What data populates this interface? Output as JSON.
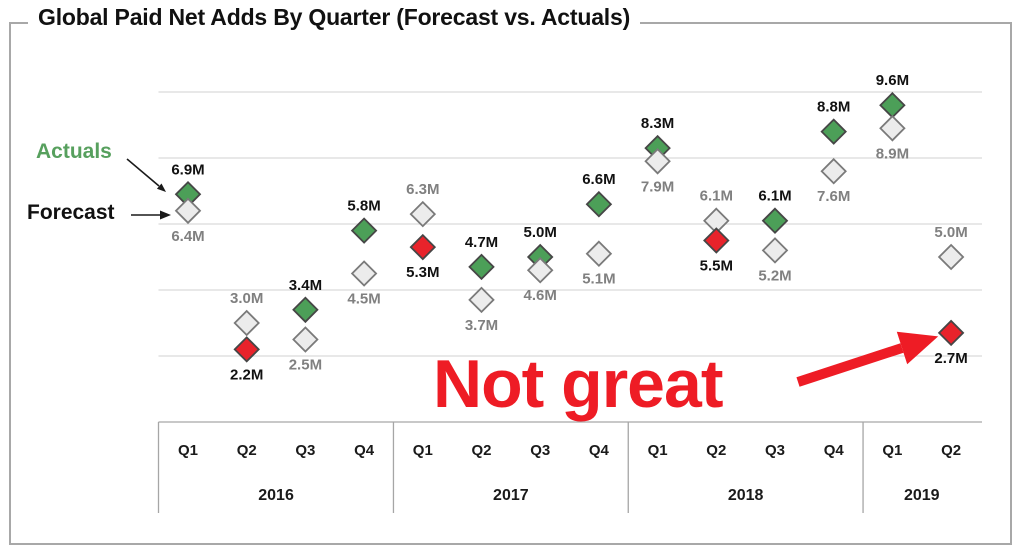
{
  "title": "Global Paid Net Adds By Quarter (Forecast vs. Actuals)",
  "legend": {
    "actuals_label": "Actuals",
    "forecast_label": "Forecast"
  },
  "annotation": {
    "text": "Not great"
  },
  "chart_data": {
    "type": "scatter",
    "title": "Global Paid Net Adds By Quarter (Forecast vs. Actuals)",
    "unit": "M",
    "ylim": [
      0,
      10
    ],
    "gridline_values": [
      2,
      4,
      6,
      8,
      10
    ],
    "grid": "horizontal-only, no y tick labels",
    "legend_entries": [
      "Actuals",
      "Forecast"
    ],
    "years": [
      {
        "label": "2016",
        "quarters": [
          "Q1",
          "Q2",
          "Q3",
          "Q4"
        ]
      },
      {
        "label": "2017",
        "quarters": [
          "Q1",
          "Q2",
          "Q3",
          "Q4"
        ]
      },
      {
        "label": "2018",
        "quarters": [
          "Q1",
          "Q2",
          "Q3",
          "Q4"
        ]
      },
      {
        "label": "2019",
        "quarters": [
          "Q1",
          "Q2"
        ]
      }
    ],
    "series": [
      {
        "name": "Actuals",
        "marker": "diamond",
        "values": [
          6.9,
          2.2,
          3.4,
          5.8,
          5.3,
          4.7,
          5.0,
          6.6,
          8.3,
          5.5,
          6.1,
          8.8,
          9.6,
          2.7
        ],
        "labels": [
          "6.9M",
          "2.2M",
          "3.4M",
          "5.8M",
          "5.3M",
          "4.7M",
          "5.0M",
          "6.6M",
          "8.3M",
          "5.5M",
          "6.1M",
          "8.8M",
          "9.6M",
          "2.7M"
        ]
      },
      {
        "name": "Forecast",
        "marker": "diamond",
        "values": [
          6.4,
          3.0,
          2.5,
          4.5,
          6.3,
          3.7,
          4.6,
          5.1,
          7.9,
          6.1,
          5.2,
          7.6,
          8.9,
          5.0
        ],
        "labels": [
          "6.4M",
          "3.0M",
          "2.5M",
          "4.5M",
          "6.3M",
          "3.7M",
          "4.6M",
          "5.1M",
          "7.9M",
          "6.1M",
          "5.2M",
          "7.6M",
          "8.9M",
          "5.0M"
        ]
      }
    ],
    "missed_quarter_indices": [
      1,
      4,
      9,
      13
    ],
    "annotation": {
      "text": "Not great",
      "points_to": {
        "year": "2019",
        "quarter": "Q2",
        "value": 2.7
      }
    }
  },
  "colors": {
    "actual_beat": "#4c9f58",
    "actual_miss": "#e8232b",
    "forecast_fill": "#ececec",
    "forecast_border": "#7a7a7a",
    "marker_border": "#464646",
    "actual_label": "#111111",
    "forecast_label": "#808080",
    "axis_label": "#1a1a1a",
    "gridline": "#d9d9d9",
    "axis": "#a6a6a6",
    "annotation_red": "#ee1c25",
    "legend_green": "#57a05e",
    "frame_border": "#a8a8a8"
  }
}
